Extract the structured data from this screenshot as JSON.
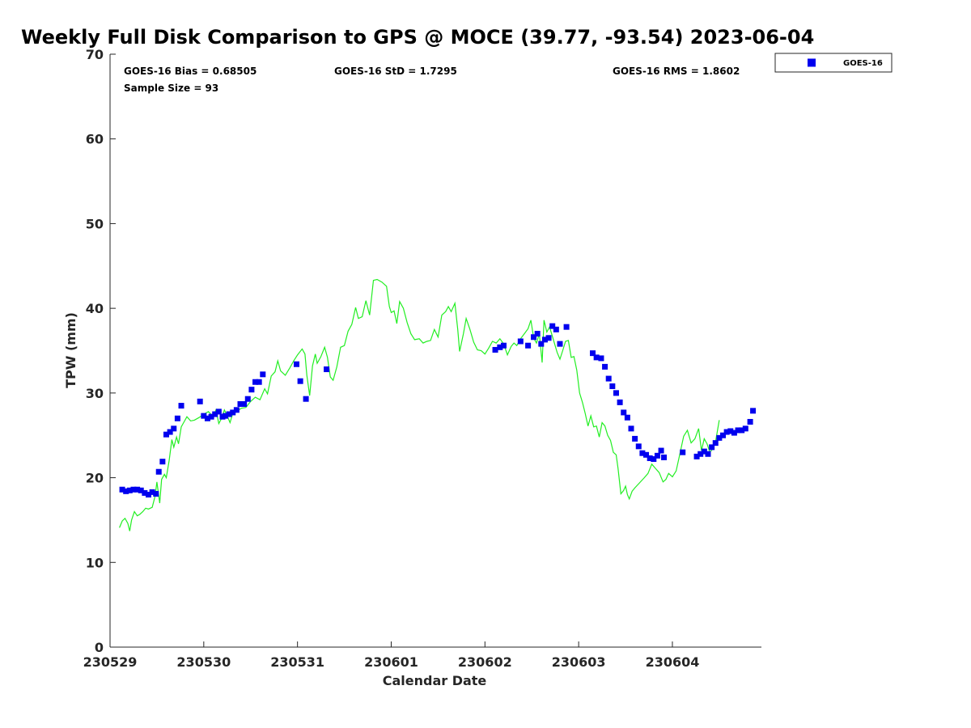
{
  "chart_data": {
    "type": "line+scatter",
    "title": "Weekly Full Disk Comparison to GPS @ MOCE (39.77, -93.54) 2023-06-04",
    "xlabel": "Calendar Date",
    "ylabel": "TPW (mm)",
    "xlim": [
      0,
      6.95
    ],
    "ylim": [
      0,
      70
    ],
    "x_tick_values": [
      0,
      1,
      2,
      3,
      4,
      5,
      6
    ],
    "x_tick_labels": [
      "230529",
      "230530",
      "230531",
      "230601",
      "230602",
      "230603",
      "230604"
    ],
    "y_tick_values": [
      0,
      10,
      20,
      30,
      40,
      50,
      60,
      70
    ],
    "y_tick_labels": [
      "0",
      "10",
      "20",
      "30",
      "40",
      "50",
      "60",
      "70"
    ],
    "stats": {
      "bias": "GOES-16 Bias = 0.68505",
      "std": "GOES-16 StD = 1.7295",
      "rms": "GOES-16 RMS = 1.8602",
      "sample_size": "Sample Size = 93"
    },
    "legend": {
      "label": "GOES-16",
      "placement": "top-right outside"
    },
    "colors": {
      "goes": "#0000ee",
      "gps": "#22ee22",
      "axis": "#262626"
    },
    "series": [
      {
        "name": "GPS",
        "type": "line",
        "points": [
          [
            0.1,
            14.1
          ],
          [
            0.13,
            14.9
          ],
          [
            0.16,
            15.2
          ],
          [
            0.19,
            14.6
          ],
          [
            0.21,
            13.7
          ],
          [
            0.23,
            15.0
          ],
          [
            0.26,
            16.0
          ],
          [
            0.29,
            15.5
          ],
          [
            0.32,
            15.7
          ],
          [
            0.35,
            16.0
          ],
          [
            0.38,
            16.4
          ],
          [
            0.41,
            16.3
          ],
          [
            0.45,
            16.5
          ],
          [
            0.48,
            17.8
          ],
          [
            0.5,
            19.5
          ],
          [
            0.53,
            17.0
          ],
          [
            0.55,
            19.8
          ],
          [
            0.58,
            20.4
          ],
          [
            0.6,
            20.0
          ],
          [
            0.63,
            22.0
          ],
          [
            0.66,
            24.5
          ],
          [
            0.68,
            23.6
          ],
          [
            0.71,
            24.8
          ],
          [
            0.73,
            24.0
          ],
          [
            0.76,
            26.0
          ],
          [
            0.79,
            26.6
          ],
          [
            0.82,
            27.2
          ],
          [
            0.86,
            26.7
          ],
          [
            0.9,
            26.8
          ],
          [
            0.95,
            27.1
          ],
          [
            1.0,
            27.5
          ],
          [
            1.05,
            27.8
          ],
          [
            1.1,
            27.2
          ],
          [
            1.13,
            28.0
          ],
          [
            1.16,
            26.4
          ],
          [
            1.19,
            27.0
          ],
          [
            1.22,
            28.0
          ],
          [
            1.25,
            27.3
          ],
          [
            1.28,
            26.5
          ],
          [
            1.31,
            27.6
          ],
          [
            1.35,
            27.8
          ],
          [
            1.4,
            28.2
          ],
          [
            1.45,
            28.3
          ],
          [
            1.5,
            29.0
          ],
          [
            1.55,
            29.5
          ],
          [
            1.6,
            29.2
          ],
          [
            1.65,
            30.5
          ],
          [
            1.68,
            29.9
          ],
          [
            1.72,
            32.0
          ],
          [
            1.76,
            32.5
          ],
          [
            1.79,
            33.8
          ],
          [
            1.82,
            32.6
          ],
          [
            1.87,
            32.1
          ],
          [
            1.92,
            33.0
          ],
          [
            1.96,
            33.8
          ],
          [
            2.0,
            34.5
          ],
          [
            2.05,
            35.2
          ],
          [
            2.08,
            34.6
          ],
          [
            2.1,
            32.1
          ],
          [
            2.13,
            29.7
          ],
          [
            2.16,
            33.2
          ],
          [
            2.19,
            34.6
          ],
          [
            2.21,
            33.5
          ],
          [
            2.25,
            34.3
          ],
          [
            2.29,
            35.4
          ],
          [
            2.32,
            34.2
          ],
          [
            2.35,
            31.9
          ],
          [
            2.38,
            31.5
          ],
          [
            2.42,
            33.1
          ],
          [
            2.46,
            35.4
          ],
          [
            2.5,
            35.6
          ],
          [
            2.54,
            37.3
          ],
          [
            2.58,
            38.1
          ],
          [
            2.62,
            40.1
          ],
          [
            2.65,
            38.8
          ],
          [
            2.69,
            39.0
          ],
          [
            2.73,
            40.9
          ],
          [
            2.77,
            39.2
          ],
          [
            2.81,
            43.3
          ],
          [
            2.85,
            43.4
          ],
          [
            2.9,
            43.1
          ],
          [
            2.95,
            42.6
          ],
          [
            2.98,
            40.2
          ],
          [
            3.0,
            39.5
          ],
          [
            3.03,
            39.7
          ],
          [
            3.06,
            38.2
          ],
          [
            3.09,
            40.8
          ],
          [
            3.13,
            40.0
          ],
          [
            3.17,
            38.3
          ],
          [
            3.21,
            37.0
          ],
          [
            3.25,
            36.3
          ],
          [
            3.3,
            36.4
          ],
          [
            3.34,
            35.9
          ],
          [
            3.38,
            36.1
          ],
          [
            3.42,
            36.2
          ],
          [
            3.46,
            37.5
          ],
          [
            3.5,
            36.6
          ],
          [
            3.54,
            39.2
          ],
          [
            3.58,
            39.6
          ],
          [
            3.61,
            40.2
          ],
          [
            3.64,
            39.6
          ],
          [
            3.68,
            40.6
          ],
          [
            3.71,
            37.5
          ],
          [
            3.73,
            34.9
          ],
          [
            3.77,
            37.0
          ],
          [
            3.8,
            38.8
          ],
          [
            3.84,
            37.5
          ],
          [
            3.88,
            36.0
          ],
          [
            3.92,
            35.1
          ],
          [
            3.96,
            35.0
          ],
          [
            4.0,
            34.6
          ],
          [
            4.04,
            35.3
          ],
          [
            4.08,
            36.1
          ],
          [
            4.12,
            35.9
          ],
          [
            4.16,
            36.4
          ],
          [
            4.2,
            35.8
          ],
          [
            4.24,
            34.5
          ],
          [
            4.28,
            35.5
          ],
          [
            4.31,
            35.9
          ],
          [
            4.34,
            35.6
          ],
          [
            4.38,
            36.4
          ],
          [
            4.42,
            37.0
          ],
          [
            4.46,
            37.6
          ],
          [
            4.49,
            38.6
          ],
          [
            4.52,
            36.5
          ],
          [
            4.55,
            35.9
          ],
          [
            4.58,
            37.0
          ],
          [
            4.61,
            33.6
          ],
          [
            4.63,
            38.6
          ],
          [
            4.66,
            37.2
          ],
          [
            4.69,
            37.8
          ],
          [
            4.73,
            36.3
          ],
          [
            4.77,
            34.8
          ],
          [
            4.8,
            34.0
          ],
          [
            4.83,
            35.0
          ],
          [
            4.86,
            36.1
          ],
          [
            4.89,
            36.2
          ],
          [
            4.92,
            34.2
          ],
          [
            4.95,
            34.3
          ],
          [
            4.98,
            32.7
          ],
          [
            5.01,
            30.0
          ],
          [
            5.04,
            28.9
          ],
          [
            5.07,
            27.6
          ],
          [
            5.1,
            26.1
          ],
          [
            5.13,
            27.3
          ],
          [
            5.16,
            26.0
          ],
          [
            5.19,
            26.1
          ],
          [
            5.22,
            24.8
          ],
          [
            5.25,
            26.5
          ],
          [
            5.28,
            26.1
          ],
          [
            5.31,
            25.0
          ],
          [
            5.34,
            24.4
          ],
          [
            5.37,
            23.0
          ],
          [
            5.4,
            22.7
          ],
          [
            5.42,
            21.1
          ],
          [
            5.45,
            18.1
          ],
          [
            5.48,
            18.5
          ],
          [
            5.5,
            19.0
          ],
          [
            5.52,
            18.0
          ],
          [
            5.54,
            17.5
          ],
          [
            5.57,
            18.4
          ],
          [
            5.6,
            18.8
          ],
          [
            5.65,
            19.4
          ],
          [
            5.7,
            20.0
          ],
          [
            5.74,
            20.5
          ],
          [
            5.78,
            21.6
          ],
          [
            5.82,
            21.1
          ],
          [
            5.86,
            20.6
          ],
          [
            5.9,
            19.5
          ],
          [
            5.93,
            19.8
          ],
          [
            5.96,
            20.5
          ],
          [
            6.0,
            20.1
          ],
          [
            6.04,
            20.8
          ],
          [
            6.08,
            22.8
          ],
          [
            6.12,
            24.9
          ],
          [
            6.16,
            25.6
          ],
          [
            6.2,
            24.1
          ],
          [
            6.24,
            24.6
          ],
          [
            6.28,
            25.8
          ],
          [
            6.31,
            23.2
          ],
          [
            6.34,
            24.6
          ],
          [
            6.37,
            24.0
          ],
          [
            6.4,
            23.0
          ],
          [
            6.43,
            23.4
          ],
          [
            6.46,
            24.2
          ],
          [
            6.5,
            26.8
          ]
        ]
      },
      {
        "name": "GOES-16",
        "type": "scatter",
        "points": [
          [
            0.13,
            18.6
          ],
          [
            0.17,
            18.4
          ],
          [
            0.21,
            18.5
          ],
          [
            0.25,
            18.6
          ],
          [
            0.29,
            18.6
          ],
          [
            0.33,
            18.5
          ],
          [
            0.37,
            18.2
          ],
          [
            0.41,
            18.0
          ],
          [
            0.45,
            18.3
          ],
          [
            0.49,
            18.1
          ],
          [
            0.52,
            20.7
          ],
          [
            0.56,
            21.9
          ],
          [
            0.6,
            25.1
          ],
          [
            0.64,
            25.4
          ],
          [
            0.68,
            25.8
          ],
          [
            0.72,
            27.0
          ],
          [
            0.76,
            28.5
          ],
          [
            0.96,
            29.0
          ],
          [
            1.0,
            27.3
          ],
          [
            1.04,
            27.0
          ],
          [
            1.08,
            27.2
          ],
          [
            1.12,
            27.5
          ],
          [
            1.16,
            27.8
          ],
          [
            1.2,
            27.2
          ],
          [
            1.23,
            27.3
          ],
          [
            1.27,
            27.5
          ],
          [
            1.31,
            27.7
          ],
          [
            1.35,
            28.0
          ],
          [
            1.39,
            28.7
          ],
          [
            1.43,
            28.7
          ],
          [
            1.47,
            29.3
          ],
          [
            1.51,
            30.4
          ],
          [
            1.55,
            31.3
          ],
          [
            1.59,
            31.3
          ],
          [
            1.63,
            32.2
          ],
          [
            1.99,
            33.4
          ],
          [
            2.03,
            31.4
          ],
          [
            2.09,
            29.3
          ],
          [
            2.31,
            32.8
          ],
          [
            4.11,
            35.1
          ],
          [
            4.16,
            35.4
          ],
          [
            4.2,
            35.6
          ],
          [
            4.38,
            36.1
          ],
          [
            4.46,
            35.6
          ],
          [
            4.52,
            36.6
          ],
          [
            4.56,
            37.0
          ],
          [
            4.6,
            35.8
          ],
          [
            4.64,
            36.3
          ],
          [
            4.68,
            36.5
          ],
          [
            4.72,
            37.9
          ],
          [
            4.76,
            37.5
          ],
          [
            4.8,
            35.8
          ],
          [
            4.87,
            37.8
          ],
          [
            5.15,
            34.7
          ],
          [
            5.19,
            34.2
          ],
          [
            5.24,
            34.1
          ],
          [
            5.28,
            33.1
          ],
          [
            5.32,
            31.7
          ],
          [
            5.36,
            30.8
          ],
          [
            5.4,
            30.0
          ],
          [
            5.44,
            28.9
          ],
          [
            5.48,
            27.7
          ],
          [
            5.52,
            27.1
          ],
          [
            5.56,
            25.8
          ],
          [
            5.6,
            24.6
          ],
          [
            5.64,
            23.7
          ],
          [
            5.68,
            22.9
          ],
          [
            5.72,
            22.7
          ],
          [
            5.76,
            22.3
          ],
          [
            5.8,
            22.2
          ],
          [
            5.84,
            22.6
          ],
          [
            5.88,
            23.2
          ],
          [
            5.91,
            22.4
          ],
          [
            6.11,
            23.0
          ],
          [
            6.26,
            22.5
          ],
          [
            6.3,
            22.8
          ],
          [
            6.34,
            23.1
          ],
          [
            6.38,
            22.8
          ],
          [
            6.42,
            23.6
          ],
          [
            6.46,
            24.1
          ],
          [
            6.5,
            24.7
          ],
          [
            6.54,
            25.0
          ],
          [
            6.58,
            25.4
          ],
          [
            6.62,
            25.5
          ],
          [
            6.66,
            25.3
          ],
          [
            6.7,
            25.6
          ],
          [
            6.74,
            25.6
          ],
          [
            6.78,
            25.8
          ],
          [
            6.83,
            26.6
          ],
          [
            6.86,
            27.9
          ]
        ]
      }
    ]
  }
}
